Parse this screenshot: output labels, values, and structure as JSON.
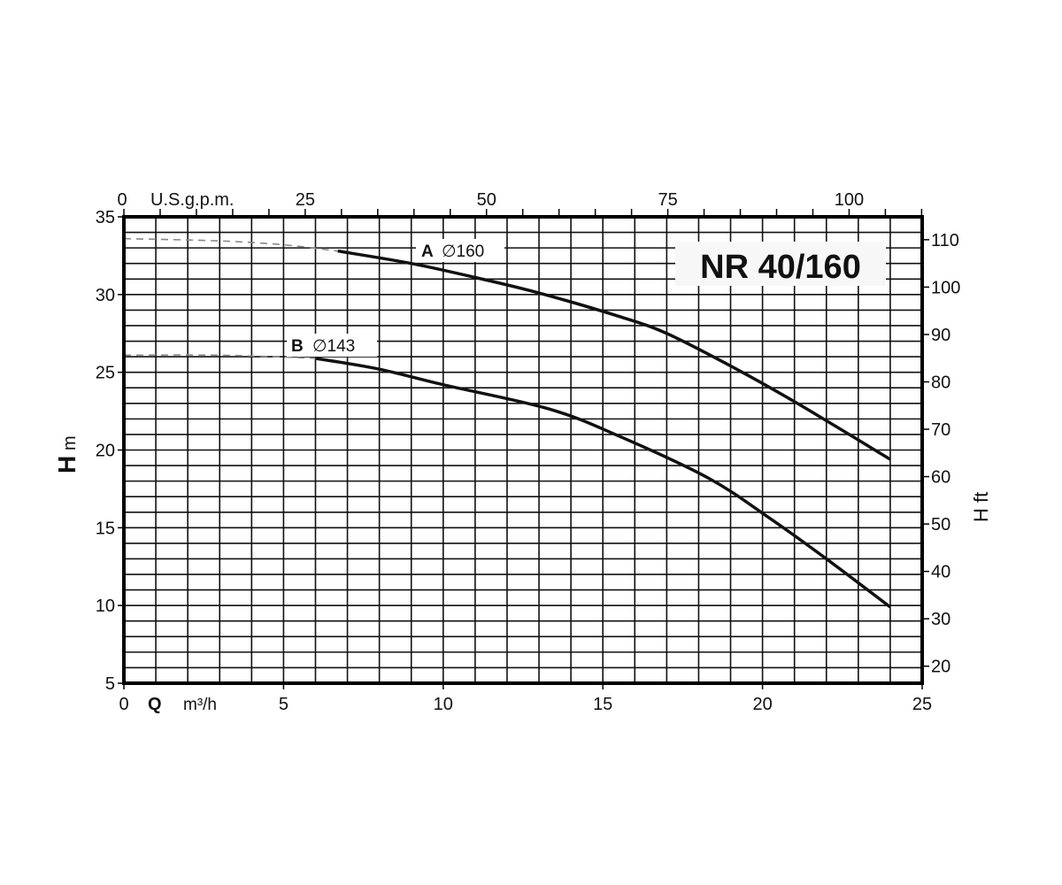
{
  "chart_data": {
    "type": "line",
    "title": "NR 40/160",
    "x_axis": {
      "label_symbol": "Q",
      "unit": "m³/h",
      "range": [
        0,
        25
      ],
      "ticks": [
        "0",
        "5",
        "10",
        "15",
        "20",
        "25"
      ],
      "grid_step": 1
    },
    "x2_axis": {
      "unit": "U.S.g.p.m.",
      "ticks": [
        "0",
        "25",
        "50",
        "75",
        "100"
      ],
      "minor_tick_step": 5,
      "conversion_per_m3h": 4.403
    },
    "y_axis": {
      "label_symbol": "H",
      "unit": "m",
      "range": [
        5,
        35
      ],
      "ticks": [
        "5",
        "10",
        "15",
        "20",
        "25",
        "30",
        "35"
      ],
      "grid_step": 1
    },
    "y2_axis": {
      "label": "H ft",
      "ticks": [
        "20",
        "30",
        "40",
        "50",
        "60",
        "70",
        "80",
        "90",
        "100",
        "110"
      ],
      "ft_per_m": 3.2808
    },
    "grid": true,
    "series": [
      {
        "name": "A",
        "diameter_label": "∅160",
        "dashed": [
          [
            0,
            33.6
          ],
          [
            3,
            33.45
          ],
          [
            5,
            33.2
          ],
          [
            6.7,
            32.8
          ]
        ],
        "solid": [
          [
            6.7,
            32.8
          ],
          [
            9,
            32.0
          ],
          [
            11,
            31.1
          ],
          [
            13,
            30.1
          ],
          [
            15.5,
            28.6
          ],
          [
            17,
            27.5
          ],
          [
            19.1,
            25.3
          ],
          [
            21.05,
            23.05
          ],
          [
            24,
            19.4
          ]
        ]
      },
      {
        "name": "B",
        "diameter_label": "∅143",
        "dashed": [
          [
            0,
            26.1
          ],
          [
            3,
            26.1
          ],
          [
            6,
            25.9
          ]
        ],
        "solid": [
          [
            6,
            25.9
          ],
          [
            8,
            25.2
          ],
          [
            10,
            24.2
          ],
          [
            13.3,
            22.65
          ],
          [
            15.5,
            20.9
          ],
          [
            18.3,
            18.2
          ],
          [
            20.2,
            15.65
          ],
          [
            22,
            13.0
          ],
          [
            24,
            9.9
          ]
        ]
      }
    ],
    "colors": {
      "line": "#111111",
      "dashed": "#888888",
      "grid": "#111111"
    }
  }
}
